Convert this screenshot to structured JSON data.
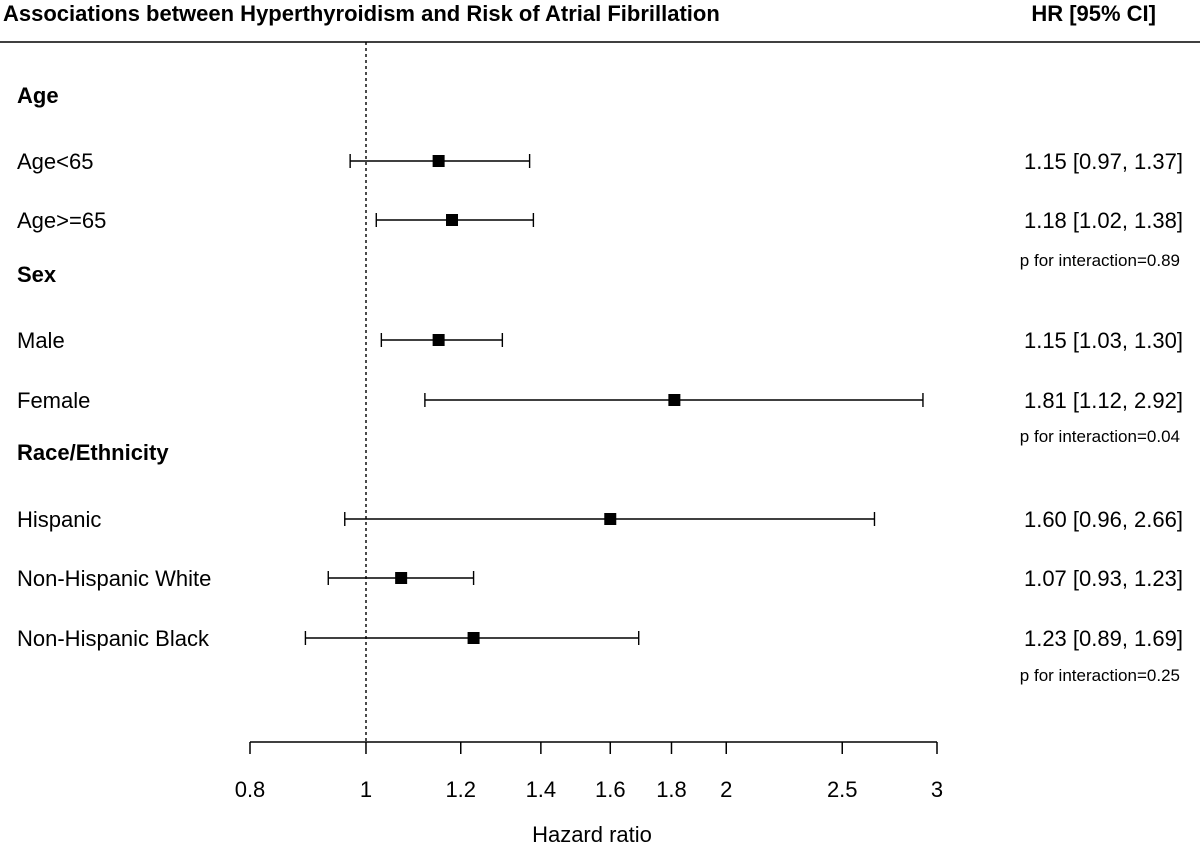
{
  "header": {
    "title": "Associations between Hyperthyroidism and Risk of Atrial Fibrillation",
    "hr_column_header": "HR [95% CI]"
  },
  "chart_data": {
    "type": "forest",
    "title": "Associations between Hyperthyroidism and Risk of Atrial Fibrillation",
    "xlabel": "Hazard ratio",
    "x_scale": "log",
    "xlim": [
      0.8,
      3
    ],
    "xticks": [
      0.8,
      1,
      1.2,
      1.4,
      1.6,
      1.8,
      2,
      2.5,
      3
    ],
    "xtick_labels": [
      "0.8",
      "1",
      "1.2",
      "1.4",
      "1.6",
      "1.8",
      "2",
      "2.5",
      "3"
    ],
    "reference_line": 1,
    "groups": [
      {
        "name": "Age",
        "rows": [
          {
            "label": "Age<65",
            "hr": 1.15,
            "lower": 0.97,
            "upper": 1.37,
            "text": "1.15 [0.97, 1.37]"
          },
          {
            "label": "Age>=65",
            "hr": 1.18,
            "lower": 1.02,
            "upper": 1.38,
            "text": "1.18 [1.02, 1.38]"
          }
        ],
        "interaction": "p for interaction=0.89"
      },
      {
        "name": "Sex",
        "rows": [
          {
            "label": "Male",
            "hr": 1.15,
            "lower": 1.03,
            "upper": 1.3,
            "text": "1.15 [1.03, 1.30]"
          },
          {
            "label": "Female",
            "hr": 1.81,
            "lower": 1.12,
            "upper": 2.92,
            "text": "1.81 [1.12, 2.92]"
          }
        ],
        "interaction": "p for interaction=0.04"
      },
      {
        "name": "Race/Ethnicity",
        "rows": [
          {
            "label": "Hispanic",
            "hr": 1.6,
            "lower": 0.96,
            "upper": 2.66,
            "text": "1.60 [0.96, 2.66]"
          },
          {
            "label": "Non-Hispanic White",
            "hr": 1.07,
            "lower": 0.93,
            "upper": 1.23,
            "text": "1.07 [0.93, 1.23]"
          },
          {
            "label": "Non-Hispanic Black",
            "hr": 1.23,
            "lower": 0.89,
            "upper": 1.69,
            "text": "1.23 [0.89, 1.69]"
          }
        ],
        "interaction": "p for interaction=0.25"
      }
    ],
    "grid": false,
    "colors": {
      "marker": "#000000",
      "line": "#000000"
    }
  }
}
